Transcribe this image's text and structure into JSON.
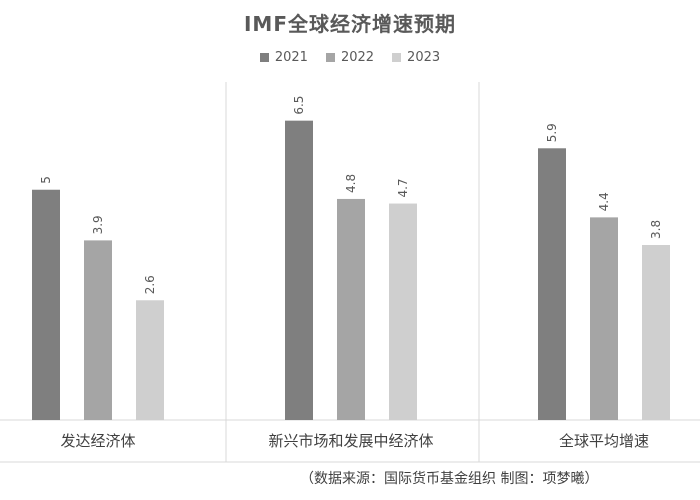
{
  "chart_data": {
    "type": "bar",
    "title": "IMF全球经济增速预期",
    "categories": [
      "发达经济体",
      "新兴市场和发展中经济体",
      "全球平均增速"
    ],
    "series": [
      {
        "name": "2021",
        "values": [
          5,
          6.5,
          5.9
        ],
        "color": "#7f7f7f"
      },
      {
        "name": "2022",
        "values": [
          3.9,
          4.8,
          4.4
        ],
        "color": "#a5a5a5"
      },
      {
        "name": "2023",
        "values": [
          2.6,
          4.7,
          3.8
        ],
        "color": "#cfcfcf"
      }
    ],
    "value_labels": [
      [
        "5",
        "6.5",
        "5.9"
      ],
      [
        "3.9",
        "4.8",
        "4.4"
      ],
      [
        "2.6",
        "4.7",
        "3.8"
      ]
    ],
    "ylim": [
      0,
      7.6
    ],
    "legend_position": "top-center",
    "gridlines": false,
    "value_label_orientation": "vertical"
  },
  "source_note": "（数据来源：国际货币基金组织  制图：项梦曦）"
}
